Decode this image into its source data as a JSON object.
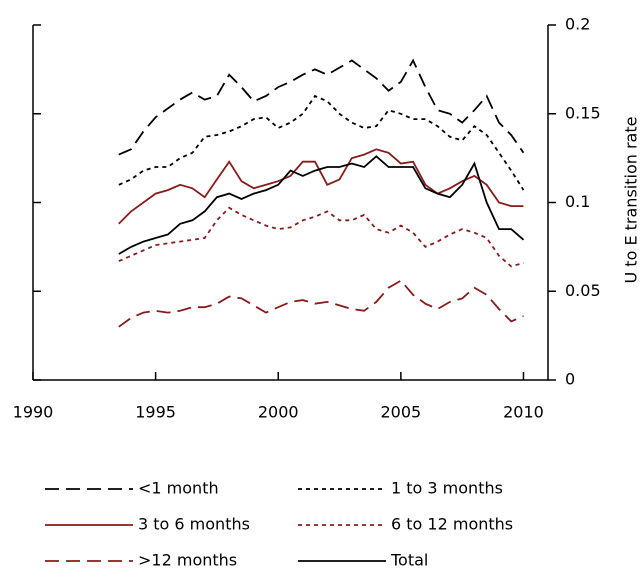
{
  "chart_data": {
    "type": "line",
    "y_label": "U to E transition rate",
    "x": [
      1993.5,
      1994,
      1994.5,
      1995,
      1995.5,
      1996,
      1996.5,
      1997,
      1997.5,
      1998,
      1998.5,
      1999,
      1999.5,
      2000,
      2000.5,
      2001,
      2001.5,
      2002,
      2002.5,
      2003,
      2003.5,
      2004,
      2004.5,
      2005,
      2005.5,
      2006,
      2006.5,
      2007,
      2007.5,
      2008,
      2008.5,
      2009,
      2009.5,
      2010
    ],
    "xlim": [
      1990,
      2011
    ],
    "xticks": [
      1990,
      1995,
      2000,
      2005,
      2010
    ],
    "ylim": [
      0,
      0.2
    ],
    "yticks": [
      0,
      0.05,
      0.1,
      0.15,
      0.2
    ],
    "y_axis_side": "right",
    "legend": "bottom",
    "series": [
      {
        "name": "<1 month",
        "color": "#000000",
        "line_style": "dashed",
        "values": [
          0.127,
          0.13,
          0.14,
          0.148,
          0.153,
          0.158,
          0.162,
          0.158,
          0.16,
          0.172,
          0.165,
          0.157,
          0.16,
          0.165,
          0.168,
          0.172,
          0.175,
          0.172,
          0.176,
          0.18,
          0.175,
          0.17,
          0.163,
          0.168,
          0.18,
          0.165,
          0.152,
          0.15,
          0.145,
          0.152,
          0.16,
          0.145,
          0.138,
          0.128
        ]
      },
      {
        "name": "1 to 3 months",
        "color": "#000000",
        "line_style": "dotted",
        "values": [
          0.11,
          0.113,
          0.118,
          0.12,
          0.12,
          0.125,
          0.128,
          0.137,
          0.138,
          0.14,
          0.143,
          0.147,
          0.148,
          0.142,
          0.145,
          0.15,
          0.16,
          0.157,
          0.15,
          0.145,
          0.142,
          0.143,
          0.152,
          0.15,
          0.147,
          0.147,
          0.143,
          0.137,
          0.135,
          0.143,
          0.138,
          0.128,
          0.118,
          0.107
        ]
      },
      {
        "name": "3 to 6 months",
        "color": "#8b1a1a",
        "line_style": "solid",
        "values": [
          0.088,
          0.095,
          0.1,
          0.105,
          0.107,
          0.11,
          0.108,
          0.103,
          0.113,
          0.123,
          0.112,
          0.108,
          0.11,
          0.112,
          0.115,
          0.123,
          0.123,
          0.11,
          0.113,
          0.125,
          0.127,
          0.13,
          0.128,
          0.122,
          0.123,
          0.11,
          0.105,
          0.108,
          0.112,
          0.115,
          0.11,
          0.1,
          0.098,
          0.098
        ]
      },
      {
        "name": "6 to 12 months",
        "color": "#8b1a1a",
        "line_style": "dotted",
        "values": [
          0.067,
          0.07,
          0.073,
          0.076,
          0.077,
          0.078,
          0.079,
          0.08,
          0.09,
          0.097,
          0.093,
          0.09,
          0.087,
          0.085,
          0.086,
          0.09,
          0.092,
          0.095,
          0.09,
          0.09,
          0.093,
          0.085,
          0.083,
          0.087,
          0.083,
          0.075,
          0.078,
          0.082,
          0.085,
          0.083,
          0.08,
          0.07,
          0.064,
          0.066
        ]
      },
      {
        "name": ">12 months",
        "color": "#8b1a1a",
        "line_style": "dashed",
        "values": [
          0.03,
          0.035,
          0.038,
          0.039,
          0.038,
          0.039,
          0.041,
          0.041,
          0.043,
          0.047,
          0.046,
          0.042,
          0.038,
          0.041,
          0.044,
          0.045,
          0.043,
          0.044,
          0.042,
          0.04,
          0.039,
          0.044,
          0.052,
          0.056,
          0.048,
          0.043,
          0.04,
          0.044,
          0.046,
          0.052,
          0.048,
          0.04,
          0.033,
          0.036
        ]
      },
      {
        "name": "Total",
        "color": "#000000",
        "line_style": "solid",
        "values": [
          0.071,
          0.075,
          0.078,
          0.08,
          0.082,
          0.088,
          0.09,
          0.095,
          0.103,
          0.105,
          0.102,
          0.105,
          0.107,
          0.11,
          0.118,
          0.115,
          0.118,
          0.12,
          0.12,
          0.122,
          0.12,
          0.126,
          0.12,
          0.12,
          0.12,
          0.108,
          0.105,
          0.103,
          0.11,
          0.122,
          0.1,
          0.085,
          0.085,
          0.079
        ]
      }
    ]
  }
}
